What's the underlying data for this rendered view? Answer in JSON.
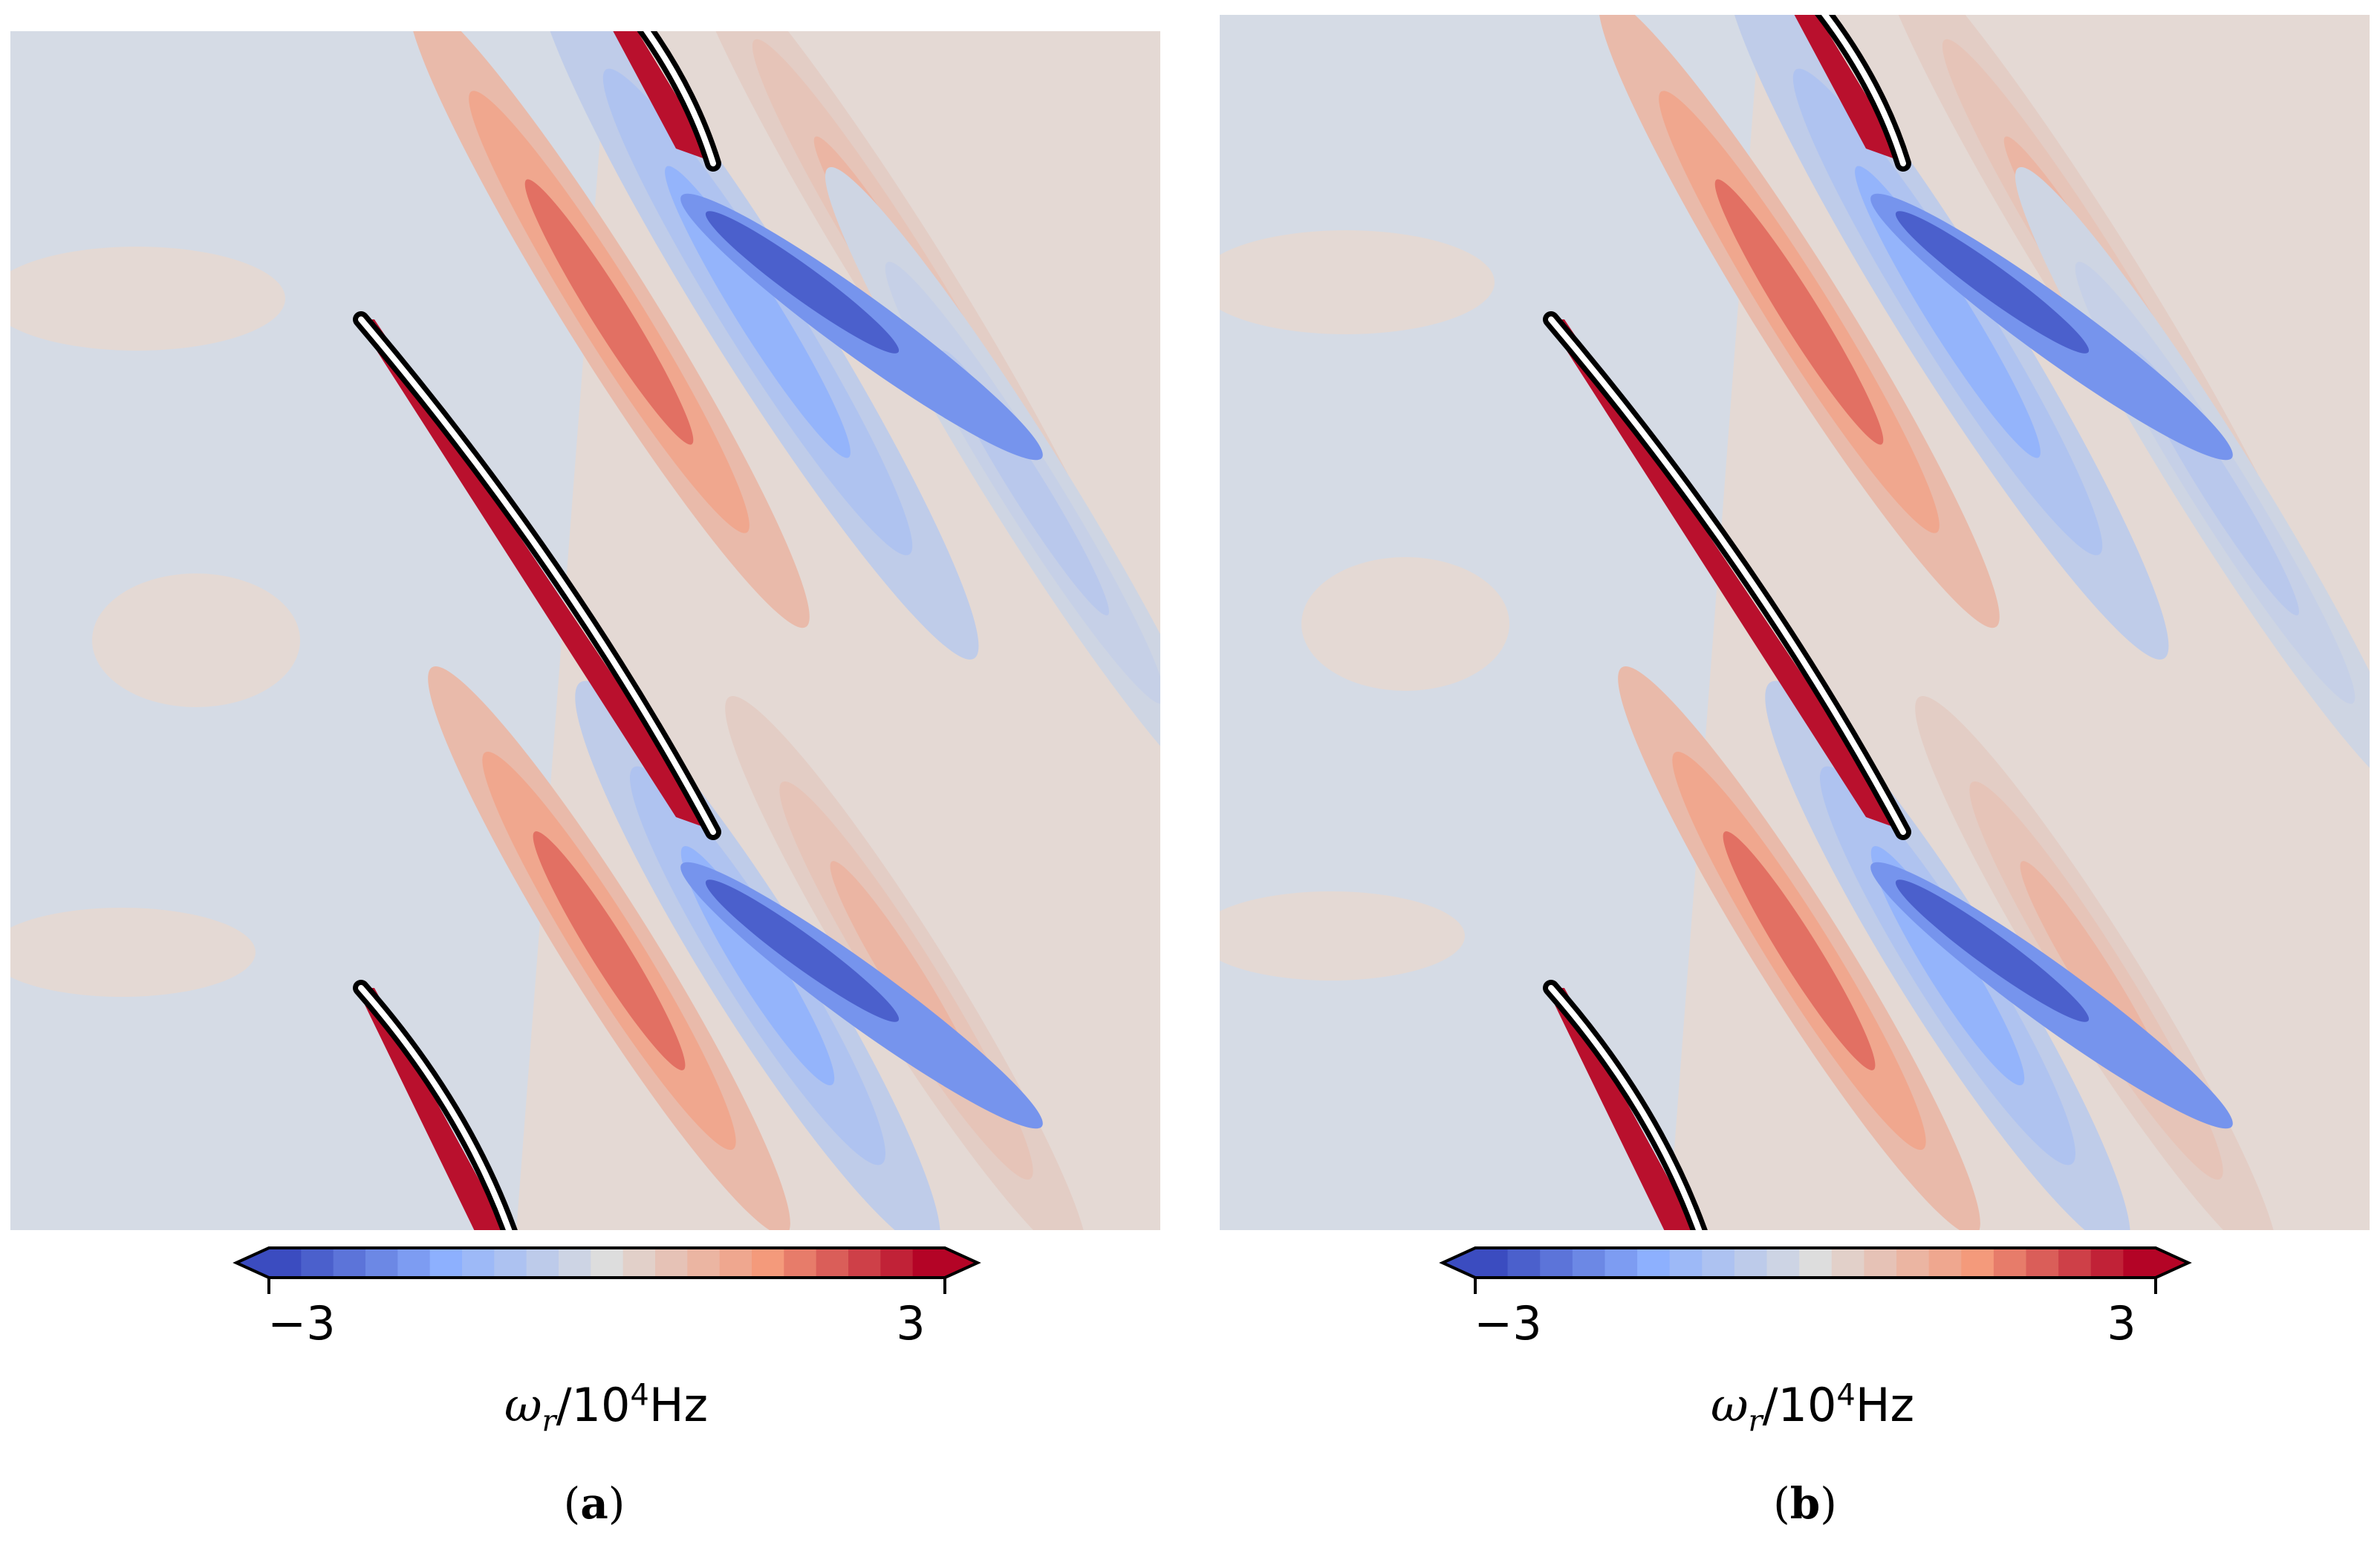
{
  "chart_data": [
    {
      "type": "heatmap",
      "panel_label": "a",
      "colorbar": {
        "min": -3,
        "max": 3,
        "levels": 21,
        "extend": "both",
        "tick_labels": [
          "−3",
          "3"
        ],
        "label_symbol": "ω",
        "label_subscript": "r",
        "label_divider": "/",
        "label_base": "10",
        "label_exponent": "4",
        "label_unit": "Hz",
        "colormap": "coolwarm"
      }
    },
    {
      "type": "heatmap",
      "panel_label": "b",
      "colorbar": {
        "min": -3,
        "max": 3,
        "levels": 21,
        "extend": "both",
        "tick_labels": [
          "−3",
          "3"
        ],
        "label_symbol": "ω",
        "label_subscript": "r",
        "label_divider": "/",
        "label_base": "10",
        "label_exponent": "4",
        "label_unit": "Hz",
        "colormap": "coolwarm"
      }
    }
  ],
  "colors": {
    "background_cool": "#d5dbe5",
    "background_warm": "#e4d9d4",
    "blade_outline": "#000000",
    "cbar_low": "#3b4cc0",
    "cbar_mid": "#dddddd",
    "cbar_high": "#b40426"
  }
}
